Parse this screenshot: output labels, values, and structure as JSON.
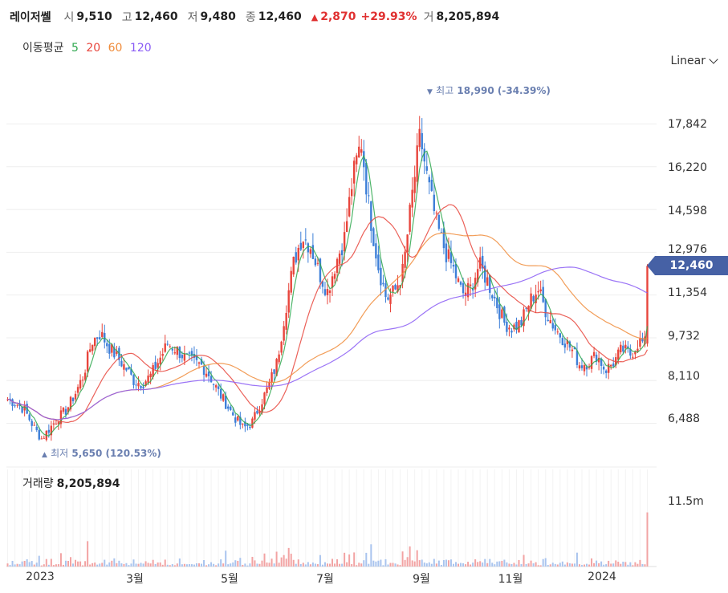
{
  "stock": {
    "name": "레이저쎌",
    "open_label": "시",
    "open": "9,510",
    "high_label": "고",
    "high": "12,460",
    "low_label": "저",
    "low": "9,480",
    "close_label": "종",
    "close": "12,460",
    "change_arrow": "▲",
    "change": "2,870",
    "change_pct": "+29.93%",
    "volume_label": "거",
    "volume": "8,205,894"
  },
  "ma": {
    "label": "이동평균",
    "items": [
      {
        "period": "5",
        "color": "#2fa84f"
      },
      {
        "period": "20",
        "color": "#e8453c"
      },
      {
        "period": "60",
        "color": "#f08c3b"
      },
      {
        "period": "120",
        "color": "#8a5cf5"
      }
    ]
  },
  "scale_selector": {
    "label": "Linear",
    "icon": "chevron-down-icon"
  },
  "price_axis": {
    "ticks": [
      "17,842",
      "16,220",
      "14,598",
      "12,976",
      "11,354",
      "9,732",
      "8,110",
      "6,488"
    ]
  },
  "current_price_tag": "12,460",
  "max_marker": {
    "arrow": "▼",
    "label": "최고",
    "value": "18,990",
    "pct": "(-34.39%)"
  },
  "min_marker": {
    "arrow": "▲",
    "label": "최저",
    "value": "5,650",
    "pct": "(120.53%)"
  },
  "volume_panel": {
    "label": "거래량",
    "value": "8,205,894",
    "tick": "11.5m"
  },
  "x_axis": {
    "labels": [
      "2023",
      "3월",
      "5월",
      "7월",
      "9월",
      "11월",
      "2024"
    ]
  },
  "colors": {
    "up": "#e8453c",
    "down": "#3d7fd8",
    "tag": "#4661a5",
    "vol_up": "#f2a3a3",
    "vol_down": "#a9c4ee"
  },
  "chart_data": {
    "type": "candlestick",
    "y_range": [
      5500,
      19500
    ],
    "tick_values": [
      17842,
      16220,
      14598,
      12976,
      11354,
      9732,
      8110,
      6488
    ],
    "ma_periods": [
      5,
      20,
      60,
      120
    ],
    "close_path": [
      7400,
      7250,
      7000,
      6400,
      5900,
      6300,
      6700,
      7000,
      7600,
      8300,
      9600,
      9900,
      9400,
      9000,
      8600,
      8100,
      8000,
      8300,
      8900,
      9500,
      9300,
      9000,
      8800,
      8700,
      8300,
      7700,
      7200,
      6700,
      6300,
      6500,
      7200,
      7900,
      8800,
      10800,
      12600,
      13600,
      13200,
      12200,
      11500,
      12600,
      13500,
      15800,
      17200,
      14500,
      12500,
      11200,
      11500,
      12300,
      15000,
      17400,
      15500,
      14000,
      13000,
      12300,
      11400,
      11600,
      12500,
      11900,
      11100,
      10300,
      10100,
      10300,
      11100,
      11600,
      10700,
      10100,
      9700,
      9300,
      8700,
      8800,
      9100,
      8500,
      8800,
      9300,
      9100,
      9600,
      9480,
      12460
    ],
    "volume_scale_max": 13500000
  }
}
